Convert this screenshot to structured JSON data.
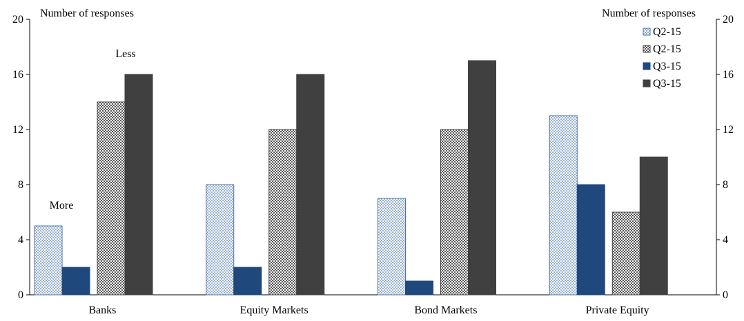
{
  "chart_data": {
    "type": "bar",
    "categories": [
      "Banks",
      "Equity Markets",
      "Bond Markets",
      "Private Equity"
    ],
    "series": [
      {
        "name": "Q2-15",
        "values": [
          5,
          8,
          7,
          13
        ],
        "pattern": "light-check",
        "color": "#9bb3d9",
        "color_alt": "#ffffff"
      },
      {
        "name": "Q3-15",
        "values": [
          2,
          2,
          1,
          8
        ],
        "pattern": "solid",
        "color": "#1f497d"
      },
      {
        "name": "Q2-15",
        "values": [
          14,
          12,
          12,
          6
        ],
        "pattern": "grey-check",
        "color": "#595959",
        "color_alt": "#ffffff"
      },
      {
        "name": "Q3-15",
        "values": [
          16,
          16,
          17,
          10
        ],
        "pattern": "solid",
        "color": "#404040"
      }
    ],
    "legend_order": [
      0,
      2,
      1,
      3
    ],
    "ylabel_left": "Number of responses",
    "ylabel_right": "Number of responses",
    "ylim": [
      0,
      20
    ],
    "yticks": [
      0,
      4,
      8,
      12,
      16,
      20
    ],
    "grid": false,
    "legend_position": "top-right",
    "annotations": [
      {
        "text": "More",
        "category_index": 0,
        "series_index": 0
      },
      {
        "text": "Less",
        "category_index": 0,
        "series_index": 3
      }
    ]
  }
}
